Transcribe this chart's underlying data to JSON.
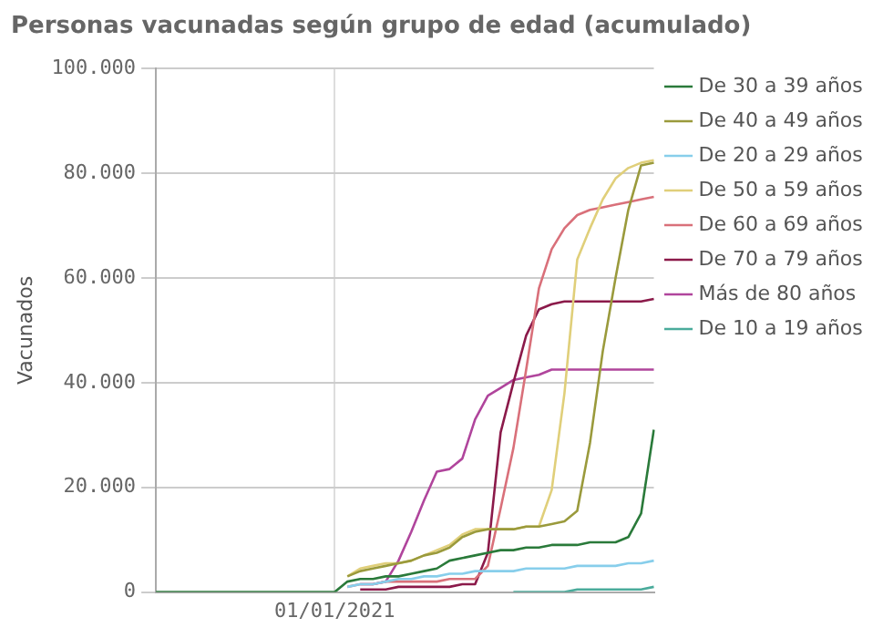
{
  "chart_data": {
    "type": "line",
    "title": "Personas vacunadas según grupo de edad (acumulado)",
    "ylabel": "Vacunados",
    "categories": [
      null,
      null,
      null,
      null,
      null,
      null,
      null,
      null,
      null,
      null,
      null,
      null,
      null,
      null,
      "01/01/2021",
      null,
      null,
      null,
      null,
      null,
      null,
      null,
      null,
      null,
      null,
      null,
      null,
      null,
      null,
      null,
      null,
      null,
      null,
      null,
      null,
      null,
      null,
      null,
      null,
      null
    ],
    "ylim": [
      0,
      100000
    ],
    "yticks": [
      {
        "value": 0,
        "label": "0"
      },
      {
        "value": 20000,
        "label": "20.000"
      },
      {
        "value": 40000,
        "label": "40.000"
      },
      {
        "value": 60000,
        "label": "60.000"
      },
      {
        "value": 80000,
        "label": "80.000"
      },
      {
        "value": 100000,
        "label": "100.000"
      }
    ],
    "grid": true,
    "legend": "right",
    "marker": "none",
    "line_style": "solid",
    "series": [
      {
        "name": "De 30 a 39 años",
        "color": "#2a7a3a",
        "values": [
          0,
          0,
          0,
          0,
          0,
          0,
          0,
          0,
          0,
          0,
          0,
          0,
          0,
          0,
          0,
          2000,
          2500,
          2500,
          3000,
          3000,
          3500,
          4000,
          4500,
          6000,
          6500,
          7000,
          7500,
          8000,
          8000,
          8500,
          8500,
          9000,
          9000,
          9000,
          9500,
          9500,
          9500,
          10500,
          15000,
          31000
        ]
      },
      {
        "name": "De 40 a 49 años",
        "color": "#9a9a3c",
        "values": [
          null,
          null,
          null,
          null,
          null,
          null,
          null,
          null,
          null,
          null,
          null,
          null,
          null,
          null,
          null,
          3000,
          4000,
          4500,
          5000,
          5500,
          6000,
          7000,
          7500,
          8500,
          10500,
          11500,
          12000,
          12000,
          12000,
          12500,
          12500,
          13000,
          13500,
          15500,
          28500,
          46000,
          60000,
          73000,
          81500,
          82000
        ]
      },
      {
        "name": "De 20 a 29 años",
        "color": "#87ceeb",
        "values": [
          null,
          null,
          null,
          null,
          null,
          null,
          null,
          null,
          null,
          null,
          null,
          null,
          null,
          null,
          null,
          1000,
          1500,
          1500,
          2000,
          2500,
          2500,
          3000,
          3000,
          3500,
          3500,
          4000,
          4000,
          4000,
          4000,
          4500,
          4500,
          4500,
          4500,
          5000,
          5000,
          5000,
          5000,
          5500,
          5500,
          6000
        ]
      },
      {
        "name": "De 50 a 59 años",
        "color": "#e0cf7a",
        "values": [
          null,
          null,
          null,
          null,
          null,
          null,
          null,
          null,
          null,
          null,
          null,
          null,
          null,
          null,
          null,
          3000,
          4500,
          5000,
          5500,
          5500,
          6000,
          7000,
          8000,
          9000,
          11000,
          12000,
          12000,
          12000,
          12000,
          12500,
          12500,
          19500,
          38000,
          63500,
          69500,
          75000,
          79000,
          81000,
          82000,
          82500
        ]
      },
      {
        "name": "De 60 a 69 años",
        "color": "#d9707a",
        "values": [
          null,
          null,
          null,
          null,
          null,
          null,
          null,
          null,
          null,
          null,
          null,
          null,
          null,
          null,
          null,
          1000,
          1500,
          1500,
          2000,
          2000,
          2000,
          2000,
          2000,
          2500,
          2500,
          2500,
          5000,
          16000,
          27500,
          42500,
          58000,
          65500,
          69500,
          72000,
          73000,
          73500,
          74000,
          74500,
          75000,
          75500
        ]
      },
      {
        "name": "De 70 a 79 años",
        "color": "#8b1a4a",
        "values": [
          null,
          null,
          null,
          null,
          null,
          null,
          null,
          null,
          null,
          null,
          null,
          null,
          null,
          null,
          null,
          null,
          500,
          500,
          500,
          1000,
          1000,
          1000,
          1000,
          1000,
          1500,
          1500,
          7500,
          30500,
          40000,
          49000,
          54000,
          55000,
          55500,
          55500,
          55500,
          55500,
          55500,
          55500,
          55500,
          56000
        ]
      },
      {
        "name": "Más de 80 años",
        "color": "#b0459c",
        "values": [
          null,
          null,
          null,
          null,
          null,
          null,
          null,
          null,
          null,
          null,
          null,
          null,
          null,
          null,
          null,
          null,
          1500,
          1500,
          2000,
          6000,
          11500,
          17500,
          23000,
          23500,
          25500,
          33000,
          37500,
          39000,
          40500,
          41000,
          41500,
          42500,
          42500,
          42500,
          42500,
          42500,
          42500,
          42500,
          42500,
          42500
        ]
      },
      {
        "name": "De 10 a 19 años",
        "color": "#4aab9b",
        "values": [
          null,
          null,
          null,
          null,
          null,
          null,
          null,
          null,
          null,
          null,
          null,
          null,
          null,
          null,
          null,
          null,
          null,
          null,
          null,
          null,
          null,
          null,
          null,
          null,
          null,
          null,
          null,
          null,
          0,
          0,
          0,
          0,
          0,
          500,
          500,
          500,
          500,
          500,
          500,
          1000
        ]
      }
    ]
  }
}
